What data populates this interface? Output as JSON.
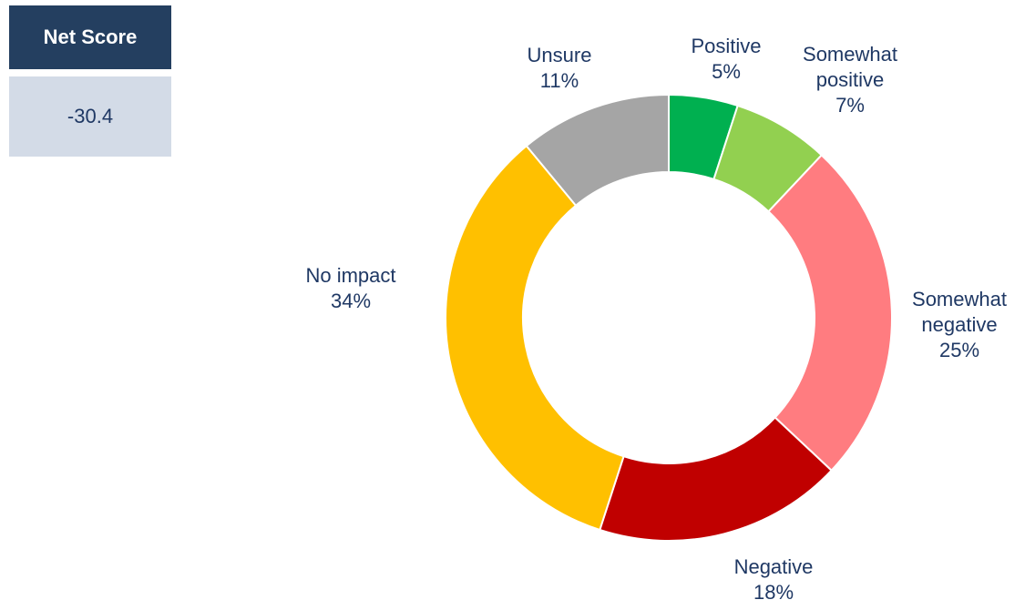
{
  "net_score": {
    "label": "Net Score",
    "value": -30.4
  },
  "chart_data": {
    "type": "pie",
    "donut": true,
    "categories": [
      "Positive",
      "Somewhat positive",
      "Somewhat negative",
      "Negative",
      "No impact",
      "Unsure"
    ],
    "values": [
      5,
      7,
      25,
      18,
      34,
      11
    ],
    "value_labels": [
      "5%",
      "7%",
      "25%",
      "18%",
      "34%",
      "11%"
    ],
    "colors": [
      "#00b050",
      "#92d050",
      "#ff7c80",
      "#c00000",
      "#ffc000",
      "#a5a5a5"
    ]
  }
}
